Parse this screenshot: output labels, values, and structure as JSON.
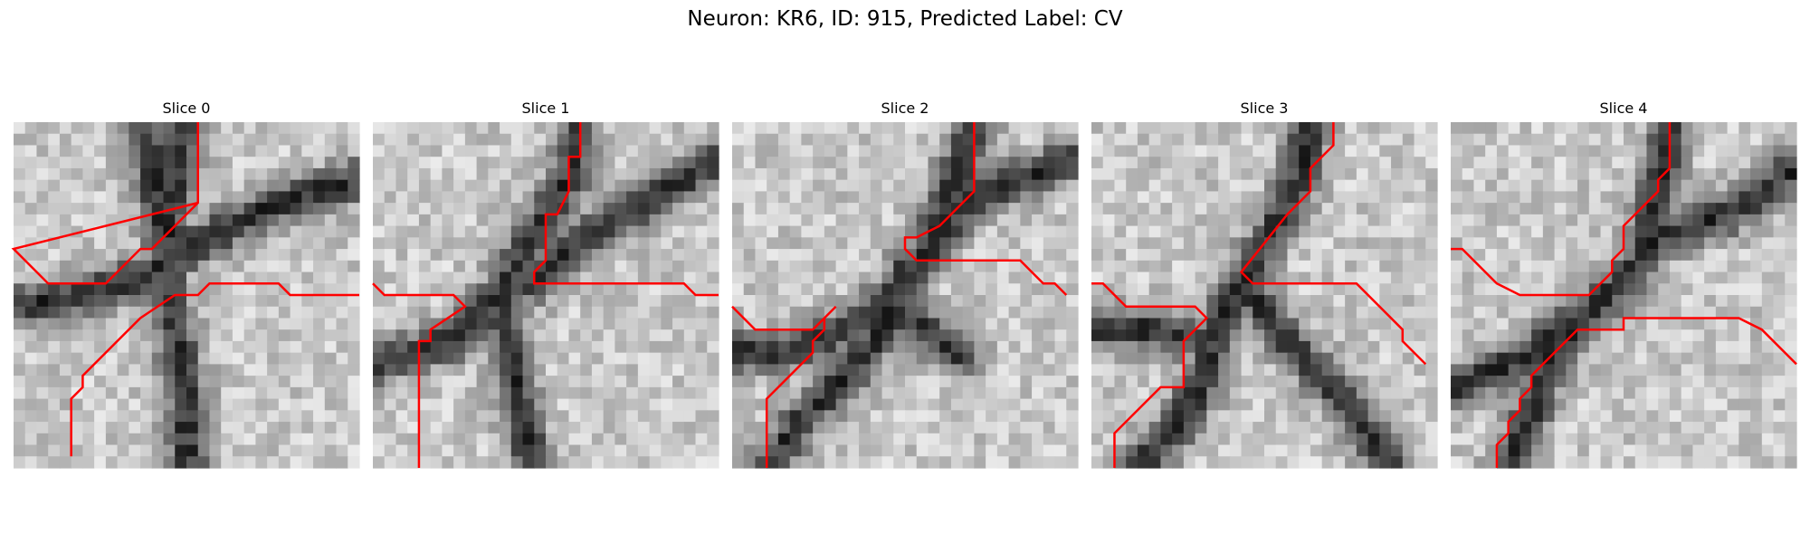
{
  "figure": {
    "suptitle": "Neuron: KR6, ID: 915, Predicted Label: CV",
    "panels": [
      {
        "title": "Slice 0",
        "seed": 11,
        "dark_paths": [
          [
            [
              15,
              0
            ],
            [
              14,
              6
            ],
            [
              13,
              12
            ],
            [
              14,
              18
            ],
            [
              15,
              24
            ],
            [
              15,
              30
            ]
          ],
          [
            [
              0,
              16
            ],
            [
              6,
              15
            ],
            [
              12,
              13
            ],
            [
              17,
              10
            ],
            [
              23,
              7
            ],
            [
              30,
              5
            ]
          ],
          [
            [
              11,
              0
            ],
            [
              12,
              4
            ],
            [
              13,
              9
            ]
          ]
        ],
        "trace": [
          [
            16,
            0
          ],
          [
            16,
            7
          ],
          [
            12,
            11
          ],
          [
            11,
            11
          ],
          [
            8,
            14
          ],
          [
            3,
            14
          ],
          [
            0,
            11
          ],
          [
            16,
            7
          ],
          [
            16,
            7
          ]
        ],
        "trace2": [
          [
            30,
            15
          ],
          [
            24,
            15
          ],
          [
            23,
            14
          ],
          [
            17,
            14
          ],
          [
            16,
            15
          ],
          [
            14,
            15
          ],
          [
            11,
            17
          ],
          [
            6,
            22
          ],
          [
            6,
            23
          ],
          [
            5,
            24
          ],
          [
            5,
            29
          ]
        ]
      },
      {
        "title": "Slice 1",
        "seed": 23,
        "dark_paths": [
          [
            [
              18,
              0
            ],
            [
              17,
              5
            ],
            [
              14,
              10
            ],
            [
              11,
              15
            ],
            [
              7,
              19
            ],
            [
              0,
              21
            ]
          ],
          [
            [
              30,
              3
            ],
            [
              24,
              7
            ],
            [
              18,
              10
            ],
            [
              14,
              14
            ]
          ],
          [
            [
              11,
              15
            ],
            [
              12,
              21
            ],
            [
              13,
              26
            ],
            [
              14,
              30
            ]
          ]
        ],
        "trace": [
          [
            18,
            0
          ],
          [
            18,
            3
          ],
          [
            17,
            3
          ],
          [
            17,
            6
          ],
          [
            16,
            8
          ],
          [
            15,
            8
          ],
          [
            15,
            12
          ],
          [
            14,
            13
          ],
          [
            14,
            14
          ],
          [
            27,
            14
          ],
          [
            28,
            15
          ],
          [
            30,
            15
          ]
        ],
        "trace2": [
          [
            0,
            14
          ],
          [
            1,
            15
          ],
          [
            7,
            15
          ],
          [
            8,
            16
          ],
          [
            5,
            18
          ],
          [
            5,
            19
          ],
          [
            4,
            19
          ],
          [
            4,
            30
          ]
        ]
      },
      {
        "title": "Slice 2",
        "seed": 37,
        "dark_paths": [
          [
            [
              21,
              0
            ],
            [
              19,
              6
            ],
            [
              17,
              11
            ],
            [
              14,
              15
            ],
            [
              10,
              18
            ],
            [
              4,
              20
            ],
            [
              0,
              20
            ]
          ],
          [
            [
              30,
              3
            ],
            [
              25,
              5
            ],
            [
              20,
              7
            ],
            [
              18,
              10
            ]
          ],
          [
            [
              15,
              13
            ],
            [
              13,
              18
            ],
            [
              10,
              22
            ],
            [
              6,
              26
            ],
            [
              3,
              30
            ]
          ],
          [
            [
              14,
              16
            ],
            [
              18,
              19
            ],
            [
              20,
              20
            ]
          ]
        ],
        "trace": [
          [
            21,
            0
          ],
          [
            21,
            6
          ],
          [
            18,
            9
          ],
          [
            16,
            10
          ],
          [
            15,
            10
          ],
          [
            15,
            11
          ],
          [
            16,
            12
          ],
          [
            25,
            12
          ],
          [
            27,
            14
          ],
          [
            28,
            14
          ],
          [
            29,
            15
          ]
        ],
        "trace2": [
          [
            0,
            16
          ],
          [
            2,
            18
          ],
          [
            7,
            18
          ],
          [
            9,
            16
          ],
          [
            8,
            17
          ],
          [
            8,
            18
          ],
          [
            7,
            19
          ],
          [
            7,
            20
          ],
          [
            3,
            24
          ],
          [
            3,
            30
          ]
        ]
      },
      {
        "title": "Slice 3",
        "seed": 53,
        "dark_paths": [
          [
            [
              19,
              0
            ],
            [
              18,
              5
            ],
            [
              16,
              9
            ],
            [
              13,
              14
            ],
            [
              11,
              18
            ],
            [
              10,
              22
            ],
            [
              7,
              27
            ],
            [
              4,
              30
            ]
          ],
          [
            [
              13,
              14
            ],
            [
              17,
              19
            ],
            [
              21,
              23
            ],
            [
              24,
              27
            ],
            [
              26,
              30
            ]
          ],
          [
            [
              0,
              18
            ],
            [
              5,
              18
            ],
            [
              10,
              19
            ]
          ]
        ],
        "trace": [
          [
            21,
            0
          ],
          [
            21,
            2
          ],
          [
            19,
            4
          ],
          [
            19,
            6
          ],
          [
            18,
            7
          ],
          [
            17,
            8
          ],
          [
            13,
            13
          ],
          [
            14,
            14
          ],
          [
            23,
            14
          ],
          [
            27,
            18
          ],
          [
            27,
            19
          ],
          [
            29,
            21
          ]
        ],
        "trace2": [
          [
            0,
            14
          ],
          [
            1,
            14
          ],
          [
            3,
            16
          ],
          [
            9,
            16
          ],
          [
            10,
            17
          ],
          [
            8,
            19
          ],
          [
            8,
            23
          ],
          [
            6,
            23
          ],
          [
            2,
            27
          ],
          [
            2,
            30
          ]
        ]
      },
      {
        "title": "Slice 4",
        "seed": 71,
        "dark_paths": [
          [
            [
              30,
              4
            ],
            [
              24,
              8
            ],
            [
              18,
              10
            ],
            [
              15,
              14
            ],
            [
              11,
              17
            ],
            [
              7,
              20
            ],
            [
              3,
              22
            ],
            [
              0,
              23
            ]
          ],
          [
            [
              19,
              0
            ],
            [
              18,
              6
            ],
            [
              17,
              10
            ]
          ],
          [
            [
              11,
              17
            ],
            [
              8,
              22
            ],
            [
              6,
              28
            ],
            [
              5,
              30
            ]
          ]
        ],
        "trace": [
          [
            19,
            0
          ],
          [
            19,
            4
          ],
          [
            18,
            5
          ],
          [
            18,
            6
          ],
          [
            17,
            7
          ],
          [
            16,
            8
          ],
          [
            15,
            9
          ],
          [
            15,
            11
          ],
          [
            14,
            12
          ],
          [
            14,
            13
          ],
          [
            13,
            14
          ],
          [
            12,
            15
          ],
          [
            6,
            15
          ],
          [
            4,
            14
          ],
          [
            1,
            11
          ],
          [
            0,
            11
          ]
        ],
        "trace2": [
          [
            30,
            21
          ],
          [
            27,
            18
          ],
          [
            25,
            17
          ],
          [
            15,
            17
          ],
          [
            15,
            18
          ],
          [
            14,
            18
          ],
          [
            11,
            18
          ],
          [
            9,
            20
          ],
          [
            7,
            22
          ],
          [
            7,
            23
          ],
          [
            6,
            24
          ],
          [
            6,
            25
          ],
          [
            5,
            26
          ],
          [
            5,
            27
          ],
          [
            4,
            28
          ],
          [
            4,
            30
          ]
        ]
      }
    ],
    "trace_color": "#ff0000"
  }
}
